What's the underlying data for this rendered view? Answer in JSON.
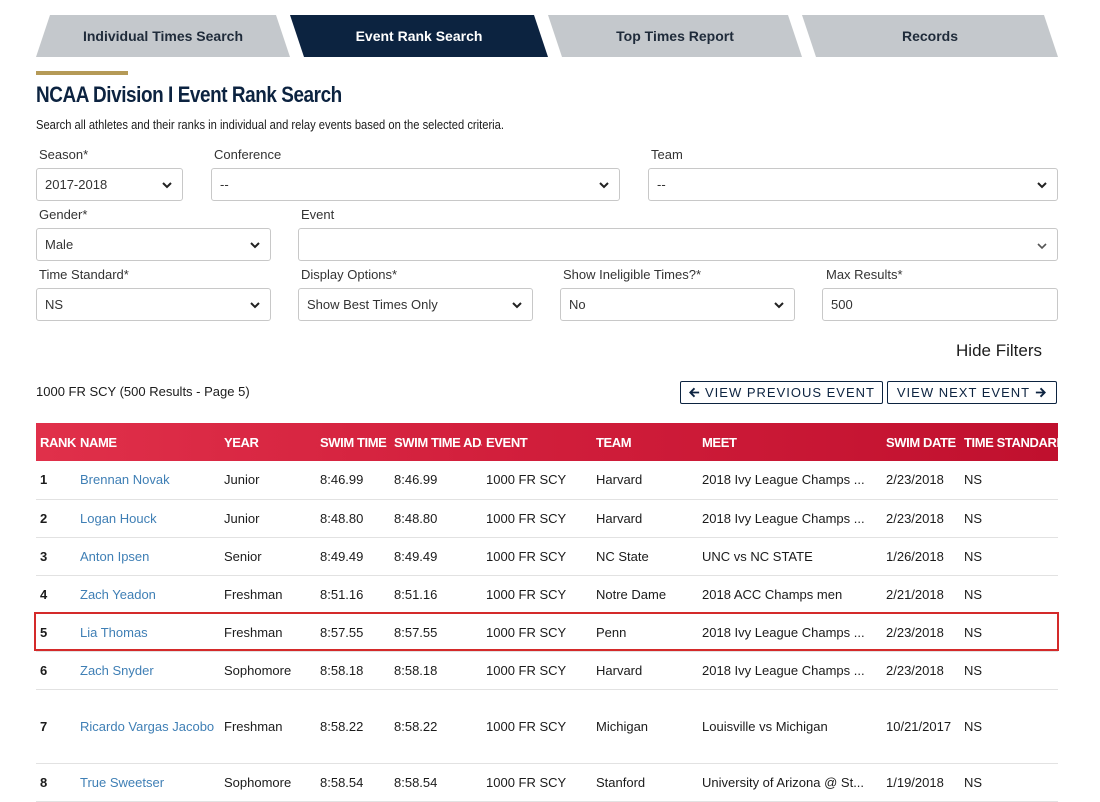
{
  "tabs": [
    {
      "label": "Individual Times Search",
      "active": false
    },
    {
      "label": "Event Rank Search",
      "active": true
    },
    {
      "label": "Top Times Report",
      "active": false
    },
    {
      "label": "Records",
      "active": false
    }
  ],
  "page": {
    "title": "NCAA Division I Event Rank Search",
    "subtitle": "Search all athletes and their ranks in individual and relay events based on the selected criteria."
  },
  "filters": {
    "season": {
      "label": "Season*",
      "value": "2017-2018"
    },
    "conference": {
      "label": "Conference",
      "value": "--"
    },
    "team": {
      "label": "Team",
      "value": "--"
    },
    "gender": {
      "label": "Gender*",
      "value": "Male"
    },
    "event": {
      "label": "Event",
      "value": ""
    },
    "time_standard": {
      "label": "Time Standard*",
      "value": "NS"
    },
    "display_options": {
      "label": "Display Options*",
      "value": "Show Best Times Only"
    },
    "show_ineligible": {
      "label": "Show Ineligible Times?*",
      "value": "No"
    },
    "max_results": {
      "label": "Max Results*",
      "value": "500"
    },
    "hide_filters_label": "Hide Filters"
  },
  "results": {
    "summary": "1000 FR SCY (500 Results - Page 5)",
    "prev_label": "VIEW PREVIOUS EVENT",
    "next_label": "VIEW NEXT EVENT"
  },
  "table": {
    "columns": [
      "RANK",
      "NAME",
      "YEAR",
      "SWIM TIME",
      "SWIM TIME ADJ",
      "EVENT",
      "TEAM",
      "MEET",
      "SWIM DATE",
      "TIME STANDARD"
    ],
    "rows": [
      {
        "rank": "1",
        "name": "Brennan Novak",
        "year": "Junior",
        "swim_time": "8:46.99",
        "swim_time_adj": "8:46.99",
        "event": "1000 FR SCY",
        "team": "Harvard",
        "meet": "2018 Ivy League Champs ...",
        "swim_date": "2/23/2018",
        "time_standard": "NS"
      },
      {
        "rank": "2",
        "name": "Logan Houck",
        "year": "Junior",
        "swim_time": "8:48.80",
        "swim_time_adj": "8:48.80",
        "event": "1000 FR SCY",
        "team": "Harvard",
        "meet": "2018 Ivy League Champs ...",
        "swim_date": "2/23/2018",
        "time_standard": "NS"
      },
      {
        "rank": "3",
        "name": "Anton Ipsen",
        "year": "Senior",
        "swim_time": "8:49.49",
        "swim_time_adj": "8:49.49",
        "event": "1000 FR SCY",
        "team": "NC State",
        "meet": "UNC vs NC STATE",
        "swim_date": "1/26/2018",
        "time_standard": "NS"
      },
      {
        "rank": "4",
        "name": "Zach Yeadon",
        "year": "Freshman",
        "swim_time": "8:51.16",
        "swim_time_adj": "8:51.16",
        "event": "1000 FR SCY",
        "team": "Notre Dame",
        "meet": "2018 ACC Champs men",
        "swim_date": "2/21/2018",
        "time_standard": "NS"
      },
      {
        "rank": "5",
        "name": "Lia Thomas",
        "year": "Freshman",
        "swim_time": "8:57.55",
        "swim_time_adj": "8:57.55",
        "event": "1000 FR SCY",
        "team": "Penn",
        "meet": "2018 Ivy League Champs ...",
        "swim_date": "2/23/2018",
        "time_standard": "NS"
      },
      {
        "rank": "6",
        "name": "Zach Snyder",
        "year": "Sophomore",
        "swim_time": "8:58.18",
        "swim_time_adj": "8:58.18",
        "event": "1000 FR SCY",
        "team": "Harvard",
        "meet": "2018 Ivy League Champs ...",
        "swim_date": "2/23/2018",
        "time_standard": "NS"
      },
      {
        "rank": "7",
        "name": "Ricardo Vargas Jacobo",
        "year": "Freshman",
        "swim_time": "8:58.22",
        "swim_time_adj": "8:58.22",
        "event": "1000 FR SCY",
        "team": "Michigan",
        "meet": "Louisville vs Michigan",
        "swim_date": "10/21/2017",
        "time_standard": "NS"
      },
      {
        "rank": "8",
        "name": "True Sweetser",
        "year": "Sophomore",
        "swim_time": "8:58.54",
        "swim_time_adj": "8:58.54",
        "event": "1000 FR SCY",
        "team": "Stanford",
        "meet": "University of Arizona @ St...",
        "swim_date": "1/19/2018",
        "time_standard": "NS"
      }
    ],
    "highlighted_row": "5"
  },
  "colors": {
    "navy": "#0c2340",
    "gold": "#b59a57",
    "header_red": "#d21f3c",
    "link_blue": "#3f7fb5",
    "highlight_border": "#d42a2a"
  }
}
